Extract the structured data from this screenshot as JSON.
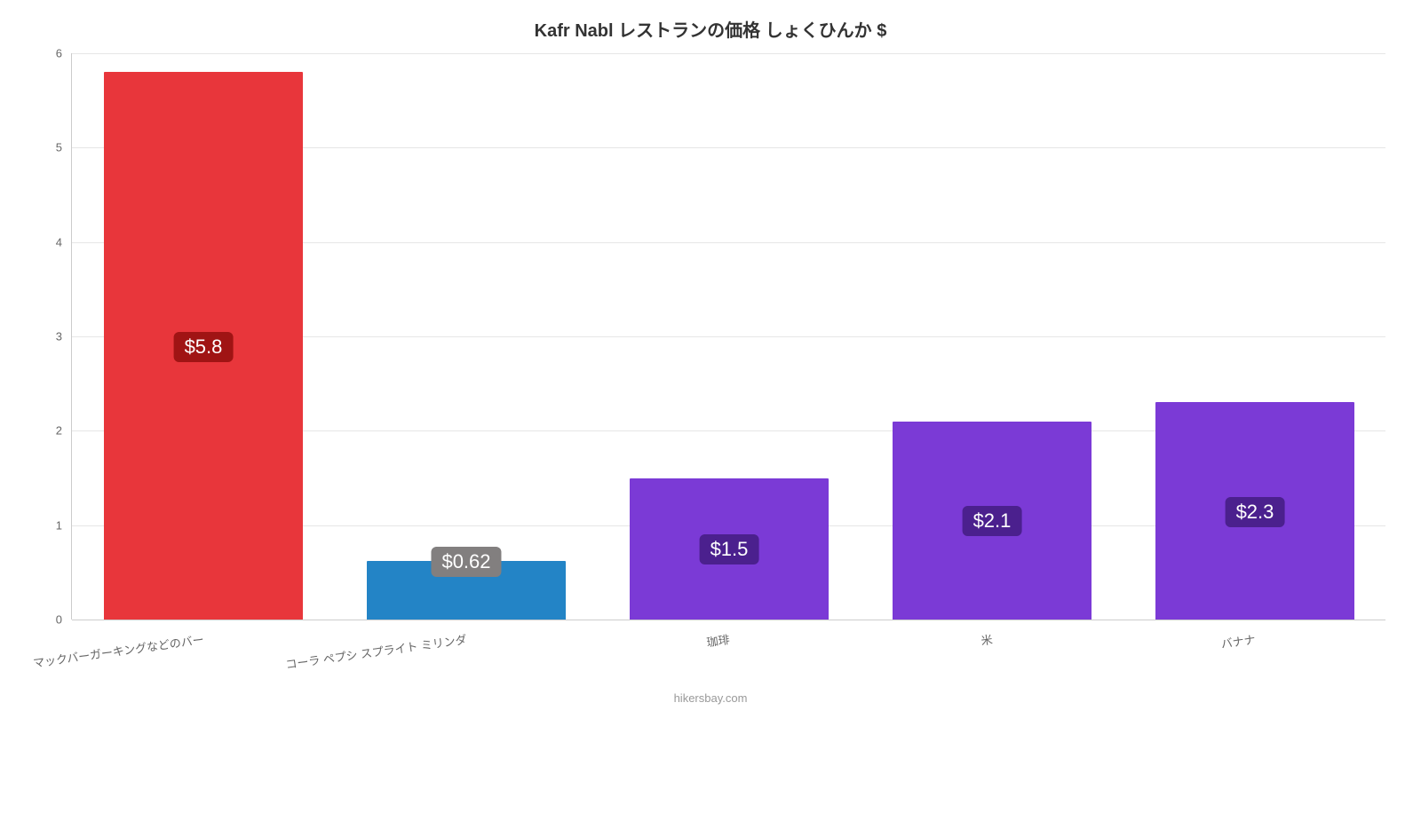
{
  "chart": {
    "type": "bar",
    "title": "Kafr Nabl レストランの価格 しょくひんか $",
    "title_fontsize": 20,
    "title_color": "#333333",
    "background_color": "#ffffff",
    "grid_color": "#e6e6e6",
    "axis_color": "#cccccc",
    "tick_label_color": "#666666",
    "tick_label_fontsize": 13,
    "ymin": 0,
    "ymax": 6,
    "ytick_step": 1,
    "yticks": [
      "0",
      "1",
      "2",
      "3",
      "4",
      "5",
      "6"
    ],
    "categories": [
      "マックバーガーキングなどのバー",
      "コーラ ペプシ スプライト ミリンダ",
      "珈琲",
      "米",
      "バナナ"
    ],
    "values": [
      5.8,
      0.62,
      1.5,
      2.1,
      2.3
    ],
    "value_labels": [
      "$5.8",
      "$0.62",
      "$1.5",
      "$2.1",
      "$2.3"
    ],
    "bar_colors": [
      "#e8363b",
      "#2384c6",
      "#7b3ad6",
      "#7b3ad6",
      "#7b3ad6"
    ],
    "badge_bg_colors": [
      "#a01414",
      "#827f7f",
      "#4b208e",
      "#4b208e",
      "#4b208e"
    ],
    "badge_text_color": "#ffffff",
    "badge_fontsize": 22,
    "bar_width_ratio": 0.76,
    "attribution": "hikersbay.com",
    "attribution_color": "#999999",
    "attribution_fontsize": 13,
    "xtick_rotate_deg": -8
  }
}
